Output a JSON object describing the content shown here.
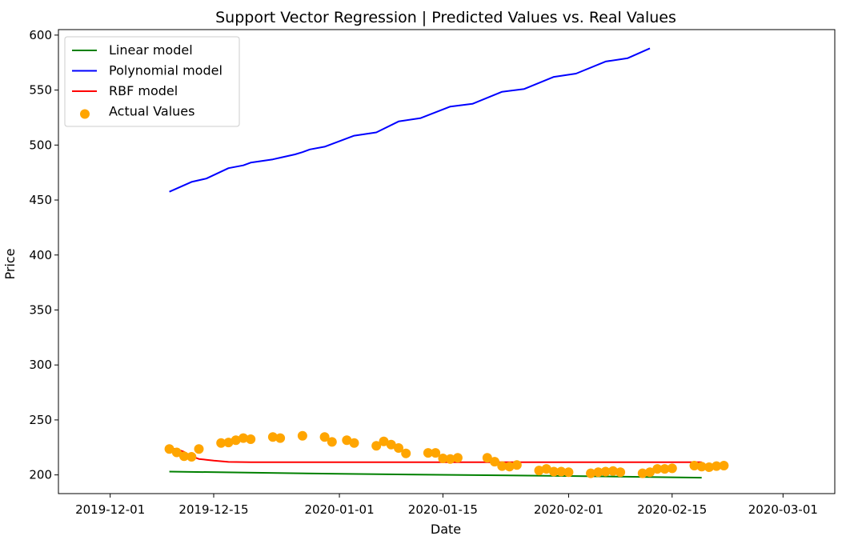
{
  "chart_data": {
    "type": "line",
    "title": "Support Vector Regression | Predicted Values vs. Real Values",
    "xlabel": "Date",
    "ylabel": "Price",
    "x_axis": {
      "range": [
        "2019-11-24",
        "2020-03-08"
      ],
      "ticks": [
        "2019-12-01",
        "2019-12-15",
        "2020-01-01",
        "2020-01-15",
        "2020-02-01",
        "2020-02-15",
        "2020-03-01"
      ]
    },
    "y_axis": {
      "range": [
        183,
        605
      ],
      "ticks": [
        200,
        250,
        300,
        350,
        400,
        450,
        500,
        550,
        600
      ]
    },
    "grid": false,
    "legend_position": "top-left",
    "series": [
      {
        "name": "Linear model",
        "kind": "line",
        "color": "#008000",
        "points": [
          [
            "2019-12-09",
            203
          ],
          [
            "2020-01-01",
            201
          ],
          [
            "2020-02-01",
            199
          ],
          [
            "2020-02-19",
            197.5
          ]
        ]
      },
      {
        "name": "Polynomial model",
        "kind": "line",
        "color": "#0000ff",
        "points": [
          [
            "2019-12-09",
            457.5
          ],
          [
            "2019-12-12",
            466.5
          ],
          [
            "2019-12-14",
            469.5
          ],
          [
            "2019-12-17",
            479
          ],
          [
            "2019-12-19",
            481.5
          ],
          [
            "2019-12-20",
            484
          ],
          [
            "2019-12-23",
            487
          ],
          [
            "2019-12-24",
            488.5
          ],
          [
            "2019-12-26",
            491.5
          ],
          [
            "2019-12-27",
            493.5
          ],
          [
            "2019-12-28",
            496
          ],
          [
            "2019-12-30",
            498.5
          ],
          [
            "2020-01-03",
            508.5
          ],
          [
            "2020-01-06",
            511.5
          ],
          [
            "2020-01-09",
            521.5
          ],
          [
            "2020-01-12",
            524.5
          ],
          [
            "2020-01-16",
            535
          ],
          [
            "2020-01-19",
            537.5
          ],
          [
            "2020-01-23",
            548.5
          ],
          [
            "2020-01-26",
            551
          ],
          [
            "2020-01-30",
            562
          ],
          [
            "2020-02-02",
            565
          ],
          [
            "2020-02-06",
            576
          ],
          [
            "2020-02-09",
            579
          ],
          [
            "2020-02-12",
            588
          ]
        ]
      },
      {
        "name": "RBF model",
        "kind": "line",
        "color": "#ff0000",
        "points": [
          [
            "2019-12-09",
            224
          ],
          [
            "2019-12-10",
            223.5
          ],
          [
            "2019-12-11",
            221
          ],
          [
            "2019-12-12",
            217
          ],
          [
            "2019-12-13",
            214.5
          ],
          [
            "2019-12-14",
            213.8
          ],
          [
            "2019-12-15",
            213
          ],
          [
            "2019-12-17",
            211.8
          ],
          [
            "2019-12-20",
            211.5
          ],
          [
            "2020-01-15",
            211.5
          ],
          [
            "2020-02-19",
            211.5
          ]
        ]
      },
      {
        "name": "Actual Values",
        "kind": "scatter",
        "color": "#ffa500",
        "points": [
          [
            "2019-12-09",
            223.5
          ],
          [
            "2019-12-10",
            220.5
          ],
          [
            "2019-12-11",
            217
          ],
          [
            "2019-12-12",
            216.5
          ],
          [
            "2019-12-13",
            223.5
          ],
          [
            "2019-12-16",
            229
          ],
          [
            "2019-12-17",
            229.5
          ],
          [
            "2019-12-18",
            231.5
          ],
          [
            "2019-12-19",
            233.5
          ],
          [
            "2019-12-20",
            232.5
          ],
          [
            "2019-12-23",
            234.5
          ],
          [
            "2019-12-24",
            233.5
          ],
          [
            "2019-12-27",
            235.5
          ],
          [
            "2019-12-30",
            234.5
          ],
          [
            "2019-12-31",
            230
          ],
          [
            "2020-01-02",
            231.5
          ],
          [
            "2020-01-03",
            229
          ],
          [
            "2020-01-06",
            226.5
          ],
          [
            "2020-01-07",
            230.5
          ],
          [
            "2020-01-08",
            227.5
          ],
          [
            "2020-01-09",
            224.5
          ],
          [
            "2020-01-10",
            219.5
          ],
          [
            "2020-01-13",
            220
          ],
          [
            "2020-01-14",
            220
          ],
          [
            "2020-01-15",
            215
          ],
          [
            "2020-01-16",
            214.5
          ],
          [
            "2020-01-17",
            215.5
          ],
          [
            "2020-01-21",
            215.5
          ],
          [
            "2020-01-22",
            212
          ],
          [
            "2020-01-23",
            208
          ],
          [
            "2020-01-24",
            207.5
          ],
          [
            "2020-01-25",
            209
          ],
          [
            "2020-01-28",
            204
          ],
          [
            "2020-01-29",
            205.5
          ],
          [
            "2020-01-30",
            203
          ],
          [
            "2020-01-31",
            203
          ],
          [
            "2020-02-01",
            202.5
          ],
          [
            "2020-02-04",
            201.5
          ],
          [
            "2020-02-05",
            202.5
          ],
          [
            "2020-02-06",
            203
          ],
          [
            "2020-02-07",
            203.5
          ],
          [
            "2020-02-08",
            202.5
          ],
          [
            "2020-02-11",
            201.5
          ],
          [
            "2020-02-12",
            202.5
          ],
          [
            "2020-02-13",
            205.5
          ],
          [
            "2020-02-14",
            205.5
          ],
          [
            "2020-02-15",
            206
          ],
          [
            "2020-02-18",
            208.5
          ],
          [
            "2020-02-19",
            207.5
          ],
          [
            "2020-02-20",
            207
          ],
          [
            "2020-02-21",
            208
          ],
          [
            "2020-02-22",
            208.5
          ]
        ]
      }
    ]
  }
}
